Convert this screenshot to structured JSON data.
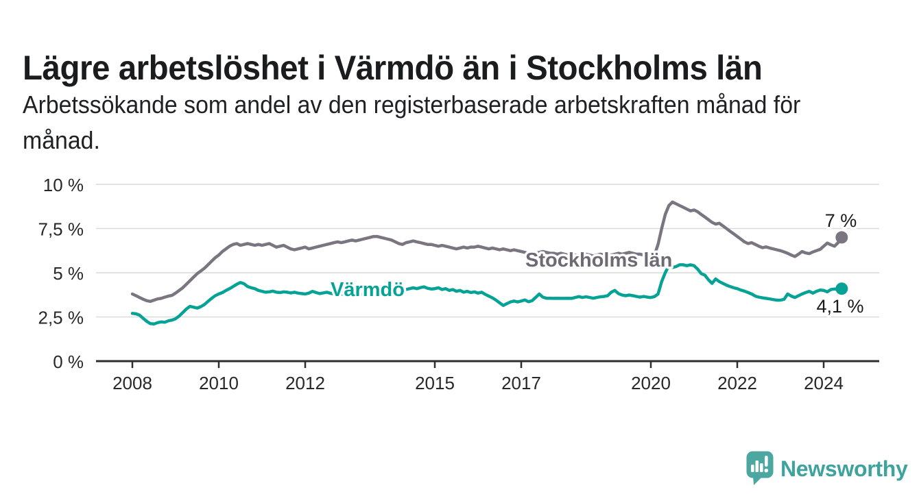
{
  "chart_data": {
    "type": "line",
    "title": "Lägre arbetslöshet i Värmdö än i Stockholms län",
    "subtitle_lines": [
      "Arbetssökande som andel av den registerbaserade arbetskraften månad för",
      "månad."
    ],
    "y_axis_unit": "%",
    "ylim": [
      0,
      10
    ],
    "grid": "horizontal",
    "legend_position": "inline-labels",
    "x_start_year": 2008,
    "points_per_year": 12,
    "x_ticks": [
      {
        "label": "2008",
        "year": 2008
      },
      {
        "label": "2010",
        "year": 2010
      },
      {
        "label": "2012",
        "year": 2012
      },
      {
        "label": "2015",
        "year": 2015
      },
      {
        "label": "2017",
        "year": 2017
      },
      {
        "label": "2020",
        "year": 2020
      },
      {
        "label": "2022",
        "year": 2022
      },
      {
        "label": "2024",
        "year": 2024
      }
    ],
    "y_ticks": [
      {
        "label": "0 %",
        "value": 0
      },
      {
        "label": "2,5 %",
        "value": 2.5
      },
      {
        "label": "5 %",
        "value": 5
      },
      {
        "label": "7,5 %",
        "value": 7.5
      },
      {
        "label": "10 %",
        "value": 10
      }
    ],
    "series": [
      {
        "name": "Stockholms län",
        "slug": "stockholms-lan",
        "color": "#7a7580",
        "label_color": "#6e6a73",
        "end_label": "7 %",
        "end_value": 7.0,
        "values": [
          3.8,
          3.7,
          3.6,
          3.5,
          3.42,
          3.38,
          3.45,
          3.52,
          3.55,
          3.62,
          3.68,
          3.72,
          3.85,
          4.0,
          4.15,
          4.35,
          4.55,
          4.75,
          4.95,
          5.1,
          5.25,
          5.45,
          5.65,
          5.85,
          6.0,
          6.2,
          6.35,
          6.5,
          6.6,
          6.65,
          6.55,
          6.6,
          6.65,
          6.6,
          6.55,
          6.6,
          6.55,
          6.6,
          6.65,
          6.55,
          6.45,
          6.5,
          6.55,
          6.45,
          6.35,
          6.3,
          6.35,
          6.4,
          6.45,
          6.35,
          6.4,
          6.45,
          6.5,
          6.55,
          6.6,
          6.65,
          6.7,
          6.75,
          6.7,
          6.75,
          6.8,
          6.85,
          6.8,
          6.85,
          6.9,
          6.95,
          7.0,
          7.05,
          7.05,
          7.0,
          6.95,
          6.9,
          6.85,
          6.75,
          6.65,
          6.6,
          6.7,
          6.75,
          6.8,
          6.75,
          6.7,
          6.65,
          6.6,
          6.6,
          6.55,
          6.5,
          6.55,
          6.5,
          6.45,
          6.4,
          6.35,
          6.4,
          6.45,
          6.4,
          6.45,
          6.45,
          6.5,
          6.45,
          6.4,
          6.35,
          6.4,
          6.35,
          6.3,
          6.35,
          6.3,
          6.25,
          6.3,
          6.25,
          6.2,
          6.15,
          6.1,
          6.15,
          6.1,
          6.15,
          6.2,
          6.15,
          6.1,
          6.1,
          6.05,
          6.1,
          6.05,
          6.0,
          6.05,
          6.0,
          5.95,
          6.0,
          6.05,
          6.0,
          5.95,
          6.0,
          6.05,
          6.0,
          6.05,
          6.0,
          6.05,
          6.1,
          6.05,
          6.1,
          6.15,
          6.1,
          6.05,
          6.05,
          6.0,
          5.95,
          5.95,
          6.0,
          6.6,
          7.5,
          8.3,
          8.8,
          9.0,
          8.9,
          8.8,
          8.7,
          8.6,
          8.5,
          8.55,
          8.45,
          8.3,
          8.15,
          8.0,
          7.85,
          7.75,
          7.8,
          7.65,
          7.5,
          7.35,
          7.2,
          7.05,
          6.9,
          6.75,
          6.65,
          6.7,
          6.6,
          6.5,
          6.42,
          6.46,
          6.4,
          6.35,
          6.3,
          6.25,
          6.18,
          6.1,
          6.0,
          5.92,
          6.05,
          6.2,
          6.12,
          6.08,
          6.18,
          6.25,
          6.32,
          6.5,
          6.68,
          6.58,
          6.5,
          6.7,
          7.0
        ]
      },
      {
        "name": "Värmdö",
        "slug": "varmdo",
        "color": "#05a295",
        "label_color": "#05a295",
        "end_label": "4,1 %",
        "end_value": 4.1,
        "values": [
          2.7,
          2.68,
          2.6,
          2.42,
          2.25,
          2.12,
          2.1,
          2.18,
          2.22,
          2.2,
          2.28,
          2.32,
          2.4,
          2.55,
          2.75,
          2.95,
          3.1,
          3.05,
          3.0,
          3.08,
          3.2,
          3.38,
          3.55,
          3.7,
          3.8,
          3.88,
          4.0,
          4.1,
          4.22,
          4.35,
          4.45,
          4.38,
          4.22,
          4.15,
          4.1,
          4.0,
          3.95,
          3.9,
          3.92,
          3.96,
          3.9,
          3.88,
          3.92,
          3.9,
          3.86,
          3.9,
          3.85,
          3.82,
          3.8,
          3.85,
          3.95,
          3.88,
          3.82,
          3.86,
          3.9,
          3.84,
          3.8,
          3.84,
          3.8,
          3.76,
          3.72,
          3.76,
          3.8,
          3.76,
          3.8,
          3.84,
          3.8,
          3.84,
          3.88,
          3.84,
          3.88,
          3.92,
          3.88,
          3.92,
          3.96,
          4.0,
          4.05,
          4.1,
          4.15,
          4.1,
          4.16,
          4.2,
          4.12,
          4.08,
          4.1,
          4.15,
          4.05,
          4.1,
          4.0,
          4.05,
          3.95,
          4.0,
          3.9,
          3.95,
          3.88,
          3.92,
          3.85,
          3.9,
          3.78,
          3.68,
          3.58,
          3.45,
          3.3,
          3.15,
          3.25,
          3.35,
          3.4,
          3.35,
          3.4,
          3.46,
          3.36,
          3.42,
          3.6,
          3.8,
          3.62,
          3.56,
          3.56,
          3.55,
          3.56,
          3.55,
          3.55,
          3.56,
          3.55,
          3.6,
          3.65,
          3.6,
          3.64,
          3.6,
          3.56,
          3.6,
          3.64,
          3.66,
          3.7,
          3.9,
          4.0,
          3.82,
          3.74,
          3.7,
          3.74,
          3.7,
          3.66,
          3.62,
          3.66,
          3.62,
          3.6,
          3.65,
          3.8,
          4.5,
          5.0,
          5.4,
          5.3,
          5.35,
          5.45,
          5.45,
          5.4,
          5.45,
          5.4,
          5.2,
          4.95,
          4.86,
          4.6,
          4.4,
          4.65,
          4.5,
          4.4,
          4.3,
          4.22,
          4.15,
          4.1,
          4.02,
          3.96,
          3.88,
          3.8,
          3.68,
          3.62,
          3.58,
          3.55,
          3.52,
          3.48,
          3.45,
          3.45,
          3.5,
          3.8,
          3.68,
          3.6,
          3.7,
          3.8,
          3.88,
          3.95,
          3.85,
          3.95,
          4.02,
          4.0,
          3.92,
          4.05,
          4.08,
          4.05,
          4.1
        ]
      }
    ]
  },
  "footer": {
    "brand": "Newsworthy",
    "brand_color": "#3ea39c",
    "logo_color": "#4ba7a0"
  }
}
